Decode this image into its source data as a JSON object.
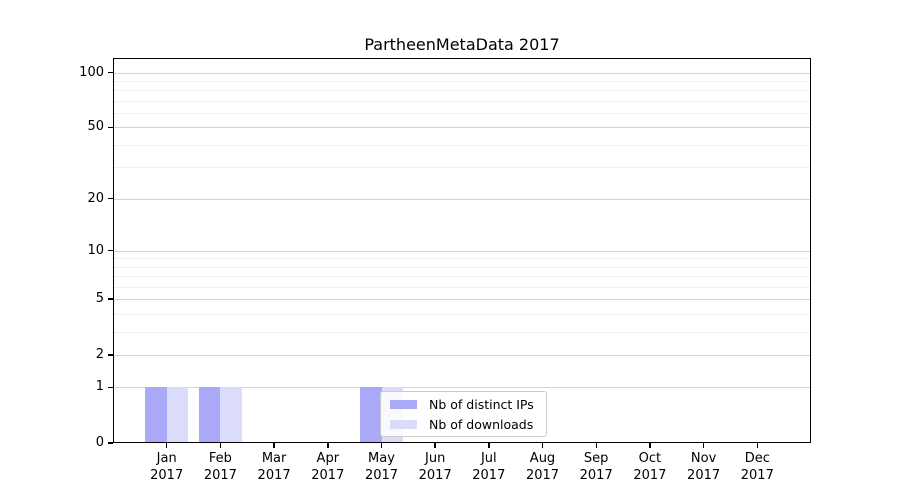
{
  "chart_data": {
    "type": "bar",
    "title": "PartheenMetaData 2017",
    "categories": [
      "Jan 2017",
      "Feb 2017",
      "Mar 2017",
      "Apr 2017",
      "May 2017",
      "Jun 2017",
      "Jul 2017",
      "Aug 2017",
      "Sep 2017",
      "Oct 2017",
      "Nov 2017",
      "Dec 2017"
    ],
    "series": [
      {
        "name": "Nb of distinct IPs",
        "color": "#a9a9f7",
        "values": [
          1,
          1,
          0,
          0,
          1,
          0,
          0,
          0,
          0,
          0,
          0,
          0
        ]
      },
      {
        "name": "Nb of downloads",
        "color": "#dbdbfa",
        "values": [
          1,
          1,
          0,
          0,
          1,
          0,
          0,
          0,
          0,
          0,
          0,
          0
        ]
      }
    ],
    "yscale": "log1p",
    "ylim": [
      0,
      120
    ],
    "y_major_ticks": [
      0,
      1,
      2,
      5,
      10,
      20,
      50,
      100
    ],
    "y_minor_ticks": [
      3,
      4,
      6,
      7,
      8,
      9,
      30,
      40,
      60,
      70,
      80,
      90
    ],
    "xlabel": "",
    "ylabel": "",
    "grid": "on",
    "legend_position": "lower center-left inset"
  },
  "colors": {
    "background": "#ffffff",
    "axis": "#000000",
    "grid_major": "#d4d4d4",
    "grid_minor": "#f0f0f0",
    "legend_border": "#cccccc"
  }
}
